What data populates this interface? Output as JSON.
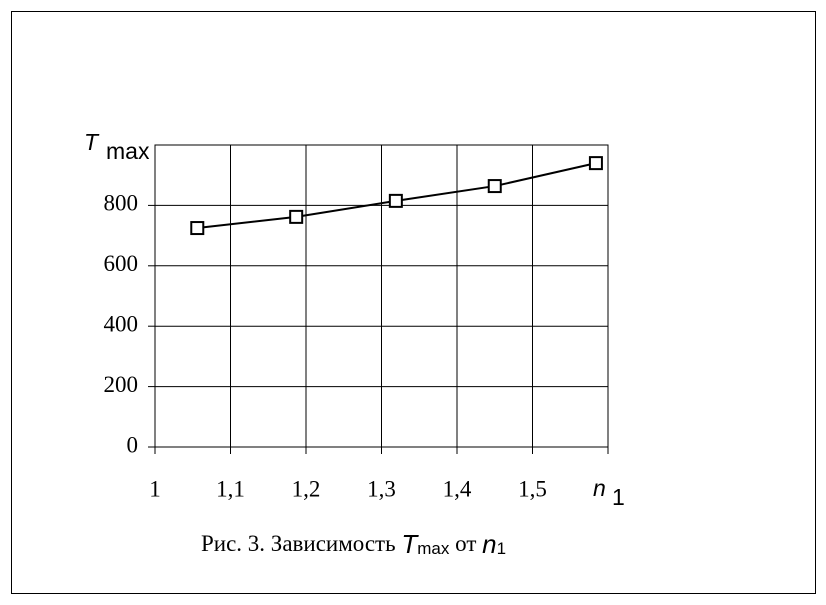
{
  "chart_data": {
    "type": "line",
    "y_label": "T",
    "y_label_sub": "max",
    "x_label": "n",
    "x_label_sub": "1",
    "caption": [
      "Рис. 3. Зависимость ",
      "T",
      "max",
      " от ",
      "n",
      "1"
    ],
    "x": [
      1.056,
      1.187,
      1.319,
      1.45,
      1.584
    ],
    "series": [
      {
        "values": [
          725,
          762,
          815,
          864,
          940
        ],
        "color": "#000000"
      }
    ],
    "xlim": [
      1,
      1.6
    ],
    "xticks": [
      1,
      {
        "value": 1.1,
        "label": "1,1"
      },
      {
        "value": 1.2,
        "label": "1,2"
      },
      {
        "value": 1.3,
        "label": "1,3"
      },
      {
        "value": 1.4,
        "label": "1,4"
      },
      {
        "value": 1.5,
        "label": "1,5"
      }
    ],
    "ylim": [
      0,
      1000
    ],
    "yticks": [
      0,
      200,
      400,
      600,
      800
    ],
    "grid": true,
    "marker": "square"
  }
}
